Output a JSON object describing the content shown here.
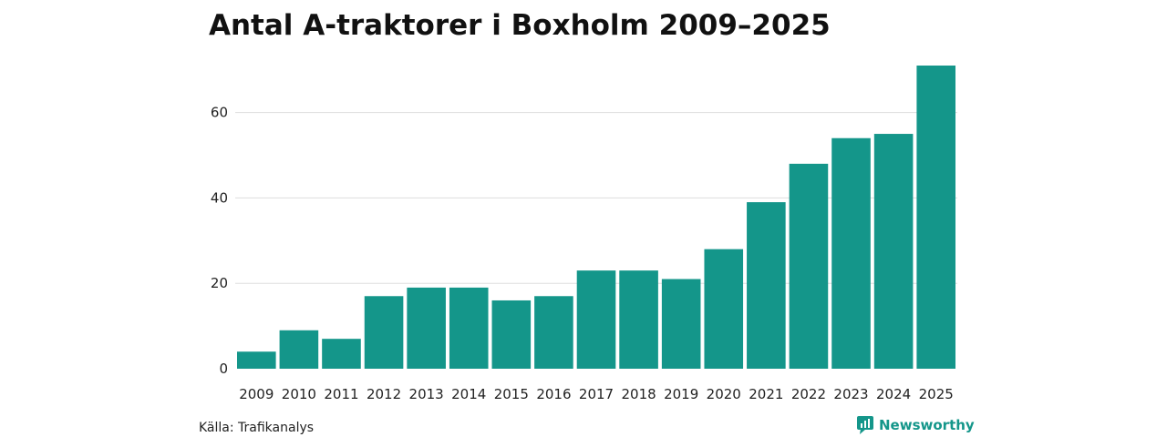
{
  "colors": {
    "bar": "#14968a",
    "grid": "#dddddd",
    "brand": "#14968a"
  },
  "source": "Källa: Trafikanalys",
  "brand": {
    "name": "Newsworthy",
    "icon": "bar-chart-bubble-icon"
  },
  "chart_data": {
    "type": "bar",
    "title": "Antal A-traktorer i Boxholm 2009–2025",
    "xlabel": "",
    "ylabel": "",
    "categories": [
      "2009",
      "2010",
      "2011",
      "2012",
      "2013",
      "2014",
      "2015",
      "2016",
      "2017",
      "2018",
      "2019",
      "2020",
      "2021",
      "2022",
      "2023",
      "2024",
      "2025"
    ],
    "values": [
      4,
      9,
      7,
      17,
      19,
      19,
      16,
      17,
      23,
      23,
      21,
      28,
      39,
      48,
      54,
      55,
      71
    ],
    "ylim": [
      0,
      71
    ],
    "yticks": [
      0,
      20,
      40,
      60
    ],
    "grid": true,
    "legend": "none"
  }
}
